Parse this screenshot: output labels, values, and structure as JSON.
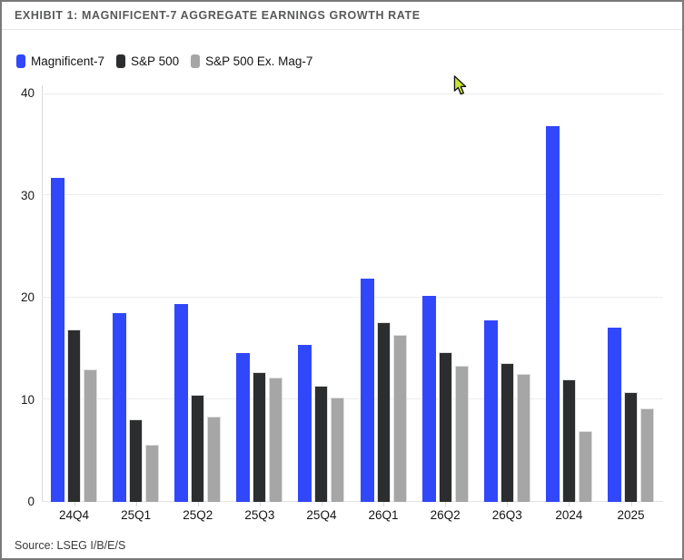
{
  "header": {
    "title": "EXHIBIT 1: MAGNIFICENT-7 AGGREGATE EARNINGS GROWTH RATE"
  },
  "legend": {
    "items": [
      {
        "label": "Magnificent-7",
        "color": "#3147fa"
      },
      {
        "label": "S&P 500",
        "color": "#2b2d2e"
      },
      {
        "label": "S&P 500 Ex. Mag-7",
        "color": "#a6a6a6"
      }
    ]
  },
  "footer": {
    "source": "Source: LSEG I/B/E/S"
  },
  "chart_data": {
    "type": "bar",
    "title": "Magnificent-7 Aggregate Earnings Growth Rate",
    "categories": [
      "24Q4",
      "25Q1",
      "25Q2",
      "25Q3",
      "25Q4",
      "26Q1",
      "26Q2",
      "26Q3",
      "2024",
      "2025"
    ],
    "series": [
      {
        "name": "Magnificent-7",
        "color": "#3147fa",
        "values": [
          31.7,
          18.5,
          19.4,
          14.6,
          15.4,
          21.9,
          20.2,
          17.8,
          36.8,
          17.1
        ]
      },
      {
        "name": "S&P 500",
        "color": "#2b2d2e",
        "values": [
          16.9,
          8.1,
          10.5,
          12.7,
          11.4,
          17.6,
          14.7,
          13.6,
          12.0,
          10.8
        ]
      },
      {
        "name": "S&P 500 Ex. Mag-7",
        "color": "#a6a6a6",
        "values": [
          13.0,
          5.6,
          8.4,
          12.2,
          10.2,
          16.4,
          13.3,
          12.5,
          6.9,
          9.2
        ]
      }
    ],
    "xlabel": "",
    "ylabel": "",
    "ylim": [
      0,
      40
    ],
    "yticks": [
      0,
      10,
      20,
      30,
      40
    ],
    "grid": true,
    "legend_position": "top-left"
  }
}
